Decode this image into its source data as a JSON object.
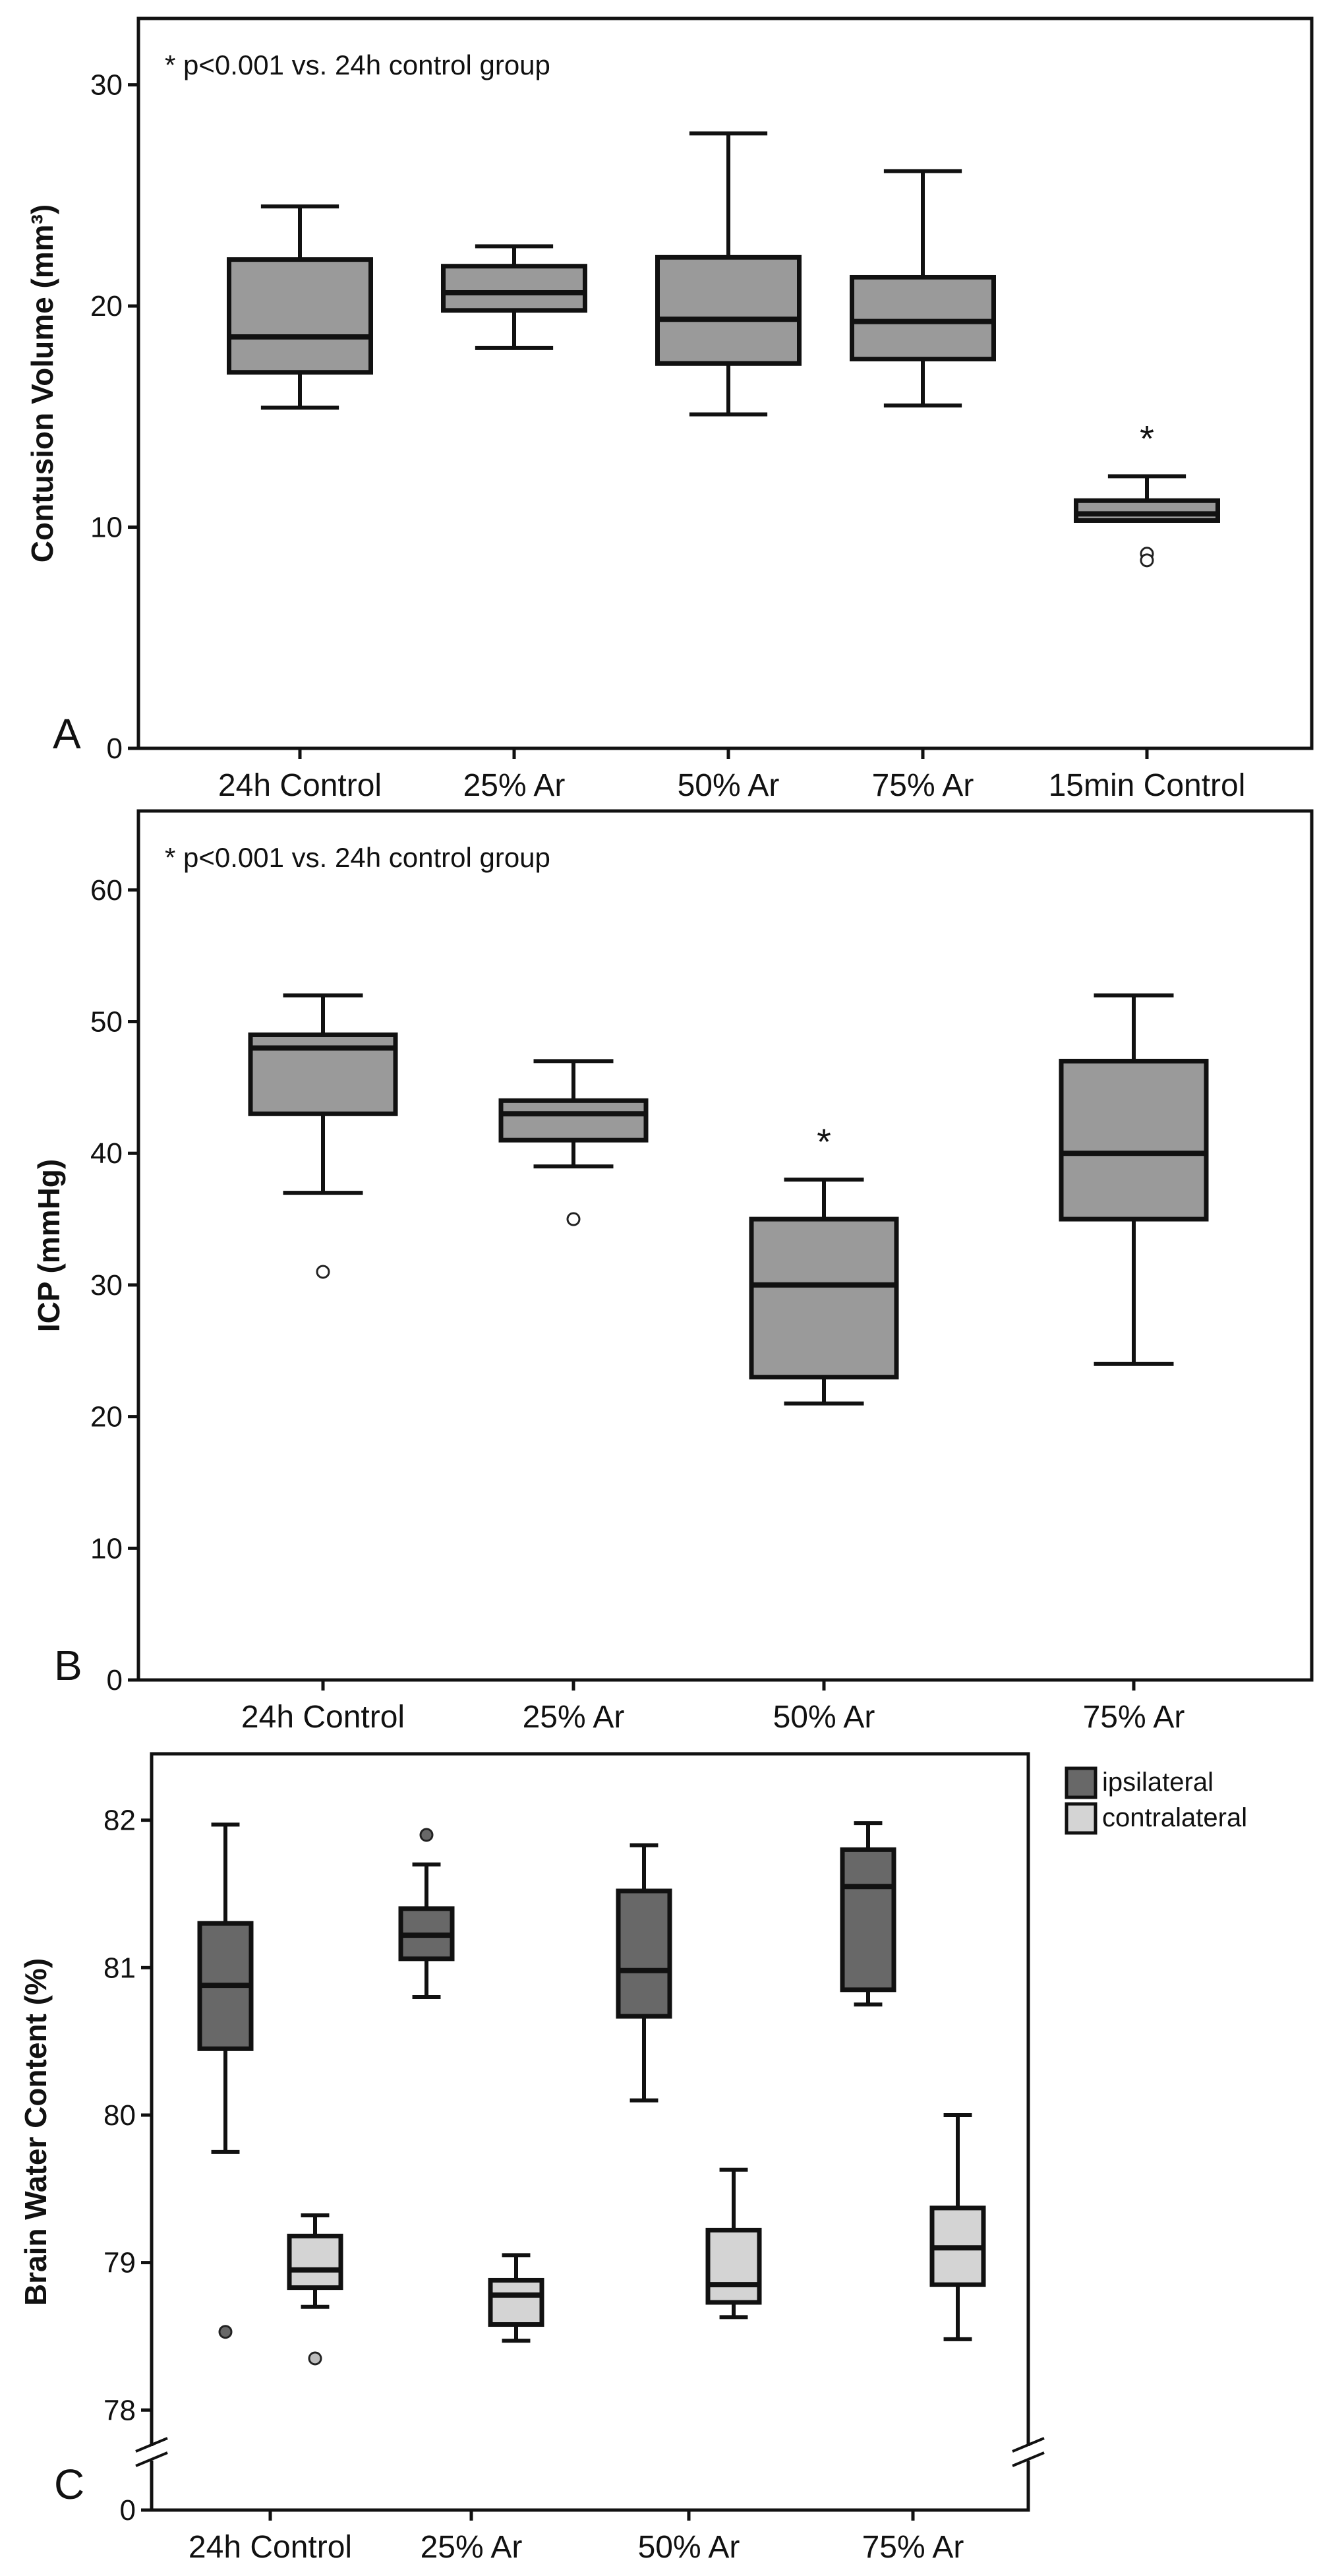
{
  "colors": {
    "box_single": "#9a9a9a",
    "ipsilateral": "#686868",
    "contralateral": "#d4d4d4",
    "outlier_ipsi": "#686868",
    "outlier_contra": "#bdbdbd"
  },
  "chart_data": [
    {
      "type": "box",
      "panel": "A",
      "title": "",
      "annotation": "* p<0.001 vs. 24h control group",
      "xlabel": "",
      "ylabel": "Contusion Volume (mm³)",
      "ylim": [
        0,
        33
      ],
      "yticks": [
        "0",
        "10",
        "20",
        "30"
      ],
      "ytick_values": [
        0,
        10,
        20,
        30
      ],
      "categories": [
        "24h Control",
        "25% Ar",
        "50% Ar",
        "75% Ar",
        "15min Control"
      ],
      "boxes": [
        {
          "whisker_low": 15.4,
          "q1": 17.0,
          "median": 18.6,
          "q3": 22.1,
          "whisker_high": 24.5,
          "outliers": [],
          "star": ""
        },
        {
          "whisker_low": 18.1,
          "q1": 19.8,
          "median": 20.6,
          "q3": 21.8,
          "whisker_high": 22.7,
          "outliers": [],
          "star": ""
        },
        {
          "whisker_low": 15.1,
          "q1": 17.4,
          "median": 19.4,
          "q3": 22.2,
          "whisker_high": 27.8,
          "outliers": [],
          "star": ""
        },
        {
          "whisker_low": 15.5,
          "q1": 17.6,
          "median": 19.3,
          "q3": 21.3,
          "whisker_high": 26.1,
          "outliers": [],
          "star": ""
        },
        {
          "whisker_low": 10.3,
          "q1": 10.3,
          "median": 10.6,
          "q3": 11.2,
          "whisker_high": 12.3,
          "outliers": [
            8.8,
            8.5
          ],
          "star": "*"
        }
      ]
    },
    {
      "type": "box",
      "panel": "B",
      "title": "",
      "annotation": "* p<0.001 vs. 24h control group",
      "xlabel": "",
      "ylabel": "ICP (mmHg)",
      "ylim": [
        0,
        66
      ],
      "yticks": [
        "0",
        "10",
        "20",
        "30",
        "40",
        "50",
        "60"
      ],
      "ytick_values": [
        0,
        10,
        20,
        30,
        40,
        50,
        60
      ],
      "categories": [
        "24h Control",
        "25% Ar",
        "50% Ar",
        "75% Ar"
      ],
      "boxes": [
        {
          "whisker_low": 37,
          "q1": 43,
          "median": 48,
          "q3": 49,
          "whisker_high": 52,
          "outliers": [
            31
          ],
          "star": ""
        },
        {
          "whisker_low": 39,
          "q1": 41,
          "median": 43,
          "q3": 44,
          "whisker_high": 47,
          "outliers": [
            35
          ],
          "star": ""
        },
        {
          "whisker_low": 21,
          "q1": 23,
          "median": 30,
          "q3": 35,
          "whisker_high": 38,
          "outliers": [],
          "star": "*"
        },
        {
          "whisker_low": 24,
          "q1": 35,
          "median": 40,
          "q3": 47,
          "whisker_high": 52,
          "outliers": [],
          "star": ""
        }
      ]
    },
    {
      "type": "box",
      "panel": "C",
      "title": "",
      "annotation": "",
      "xlabel": "",
      "ylabel": "Brain Water Content (%)",
      "ylim": [
        77.8,
        82.45
      ],
      "axis_break": "between 0 and 78",
      "yticks": [
        "0",
        "78",
        "79",
        "80",
        "81",
        "82"
      ],
      "ytick_values": [
        0,
        78,
        79,
        80,
        81,
        82
      ],
      "categories": [
        "24h Control",
        "25% Ar",
        "50% Ar",
        "75% Ar"
      ],
      "legend": {
        "position": "top-right, outside plot",
        "entries": [
          "ipsilateral",
          "contralateral"
        ]
      },
      "series": [
        {
          "name": "ipsilateral",
          "boxes": [
            {
              "whisker_low": 79.75,
              "q1": 80.45,
              "median": 80.88,
              "q3": 81.3,
              "whisker_high": 81.97,
              "outliers": [
                78.53
              ]
            },
            {
              "whisker_low": 80.8,
              "q1": 81.06,
              "median": 81.22,
              "q3": 81.4,
              "whisker_high": 81.7,
              "outliers": [
                81.9
              ]
            },
            {
              "whisker_low": 80.1,
              "q1": 80.67,
              "median": 80.98,
              "q3": 81.52,
              "whisker_high": 81.83,
              "outliers": []
            },
            {
              "whisker_low": 80.75,
              "q1": 80.85,
              "median": 81.55,
              "q3": 81.8,
              "whisker_high": 81.98,
              "outliers": []
            }
          ]
        },
        {
          "name": "contralateral",
          "boxes": [
            {
              "whisker_low": 78.7,
              "q1": 78.83,
              "median": 78.95,
              "q3": 79.18,
              "whisker_high": 79.32,
              "outliers": [
                78.35
              ]
            },
            {
              "whisker_low": 78.47,
              "q1": 78.58,
              "median": 78.78,
              "q3": 78.88,
              "whisker_high": 79.05,
              "outliers": []
            },
            {
              "whisker_low": 78.63,
              "q1": 78.73,
              "median": 78.85,
              "q3": 79.22,
              "whisker_high": 79.63,
              "outliers": []
            },
            {
              "whisker_low": 78.48,
              "q1": 78.85,
              "median": 79.1,
              "q3": 79.37,
              "whisker_high": 80.0,
              "outliers": []
            }
          ]
        }
      ]
    }
  ]
}
